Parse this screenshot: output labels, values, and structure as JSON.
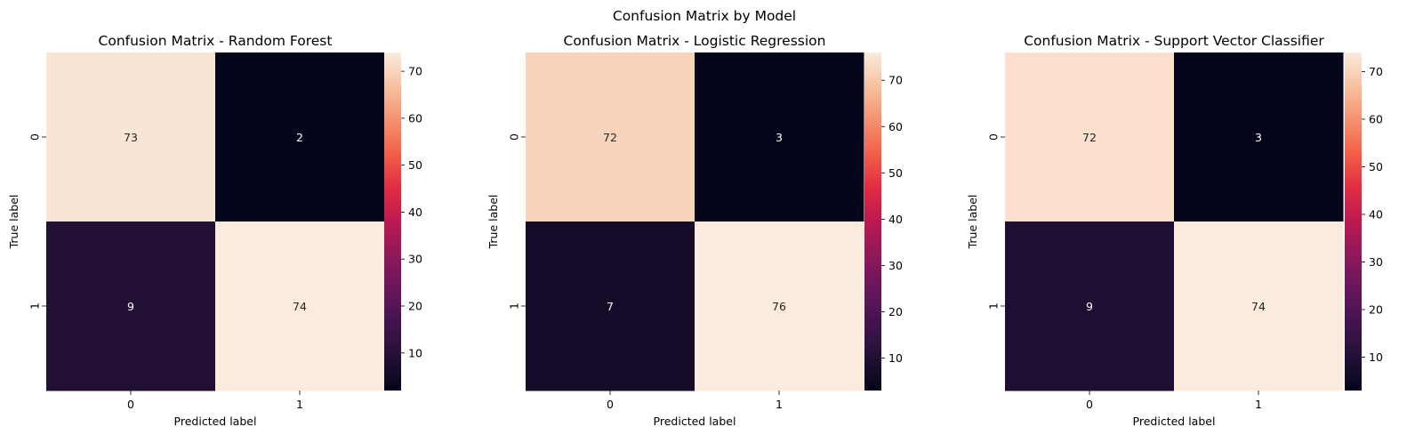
{
  "figure": {
    "suptitle": "Confusion Matrix by Model"
  },
  "chart_data": [
    {
      "type": "heatmap",
      "title": "Confusion Matrix - Random Forest",
      "xlabel": "Predicted label",
      "ylabel": "True label",
      "x_categories": [
        "0",
        "1"
      ],
      "y_categories": [
        "0",
        "1"
      ],
      "matrix": [
        [
          73,
          2
        ],
        [
          9,
          74
        ]
      ],
      "colormap": "rocket",
      "colorbar": {
        "min": 2,
        "max": 74,
        "ticks": [
          10,
          20,
          30,
          40,
          50,
          60,
          70
        ]
      }
    },
    {
      "type": "heatmap",
      "title": "Confusion Matrix - Logistic Regression",
      "xlabel": "Predicted label",
      "ylabel": "True label",
      "x_categories": [
        "0",
        "1"
      ],
      "y_categories": [
        "0",
        "1"
      ],
      "matrix": [
        [
          72,
          3
        ],
        [
          7,
          76
        ]
      ],
      "colormap": "rocket",
      "colorbar": {
        "min": 3,
        "max": 76,
        "ticks": [
          10,
          20,
          30,
          40,
          50,
          60,
          70
        ]
      }
    },
    {
      "type": "heatmap",
      "title": "Confusion Matrix - Support Vector Classifier",
      "xlabel": "Predicted label",
      "ylabel": "True label",
      "x_categories": [
        "0",
        "1"
      ],
      "y_categories": [
        "0",
        "1"
      ],
      "matrix": [
        [
          72,
          3
        ],
        [
          9,
          74
        ]
      ],
      "colormap": "rocket",
      "colorbar": {
        "min": 3,
        "max": 74,
        "ticks": [
          10,
          20,
          30,
          40,
          50,
          60,
          70
        ]
      }
    }
  ]
}
